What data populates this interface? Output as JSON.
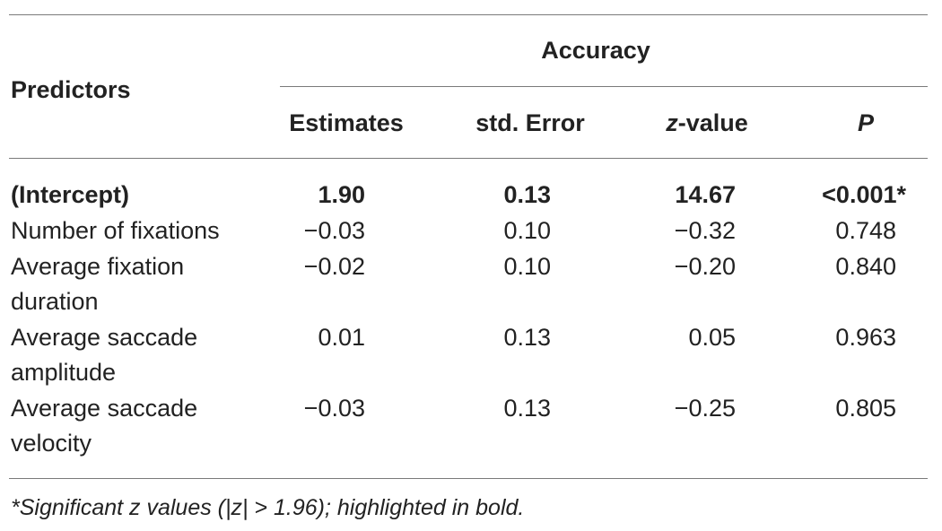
{
  "header": {
    "predictors_label": "Predictors",
    "group_label": "Accuracy",
    "columns": {
      "estimates": "Estimates",
      "std_error": "std. Error",
      "z_value_italic": "z",
      "z_value_rest": "-value",
      "p": "P"
    }
  },
  "rows": [
    {
      "predictor": "(Intercept)",
      "predictor_line2": "",
      "estimate": "1.90",
      "std_error": "0.13",
      "z_value": "14.67",
      "p": "<0.001*",
      "bold": true
    },
    {
      "predictor": "Number of fixations",
      "predictor_line2": "",
      "estimate": "−0.03",
      "std_error": "0.10",
      "z_value": "−0.32",
      "p": "0.748",
      "bold": false
    },
    {
      "predictor": "Average fixation",
      "predictor_line2": "duration",
      "estimate": "−0.02",
      "std_error": "0.10",
      "z_value": "−0.20",
      "p": "0.840",
      "bold": false
    },
    {
      "predictor": "Average saccade",
      "predictor_line2": "amplitude",
      "estimate": "0.01",
      "std_error": "0.13",
      "z_value": "0.05",
      "p": "0.963",
      "bold": false
    },
    {
      "predictor": "Average saccade",
      "predictor_line2": "velocity",
      "estimate": "−0.03",
      "std_error": "0.13",
      "z_value": "−0.25",
      "p": "0.805",
      "bold": false
    }
  ],
  "footnote": "*Significant z values (|z| > 1.96); highlighted in bold."
}
